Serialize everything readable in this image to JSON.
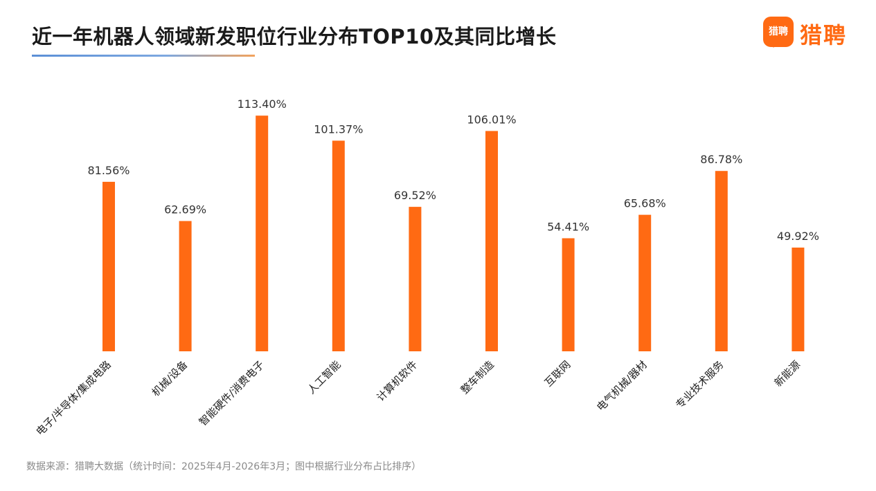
{
  "header": {
    "title": "近一年机器人领域新发职位行业分布TOP10及其同比增长",
    "logo_badge": "猎聘",
    "logo_text": "猎聘"
  },
  "chart_data": {
    "type": "bar",
    "title": "近一年机器人领域新发职位行业分布TOP10及其同比增长",
    "xlabel": "",
    "ylabel": "",
    "ylim": [
      0,
      120
    ],
    "grid": false,
    "categories": [
      "电子/半导体/集成电路",
      "机械/设备",
      "智能硬件/消费电子",
      "人工智能",
      "计算机软件",
      "整车制造",
      "互联网",
      "电气机械/器材",
      "专业技术服务",
      "新能源"
    ],
    "values": [
      81.56,
      62.69,
      113.4,
      101.37,
      69.52,
      106.01,
      54.41,
      65.68,
      86.78,
      49.92
    ],
    "data_labels": [
      "81.56%",
      "62.69%",
      "113.40%",
      "101.37%",
      "69.52%",
      "106.01%",
      "54.41%",
      "65.68%",
      "86.78%",
      "49.92%"
    ],
    "bar_color": "#ff6a13"
  },
  "footer": {
    "source": "数据来源：猎聘大数据（统计时间：2025年4月-2026年3月；图中根据行业分布占比排序）"
  },
  "colors": {
    "accent": "#ff6a13",
    "title": "#1a1a1a",
    "source": "#8a8a8a"
  }
}
